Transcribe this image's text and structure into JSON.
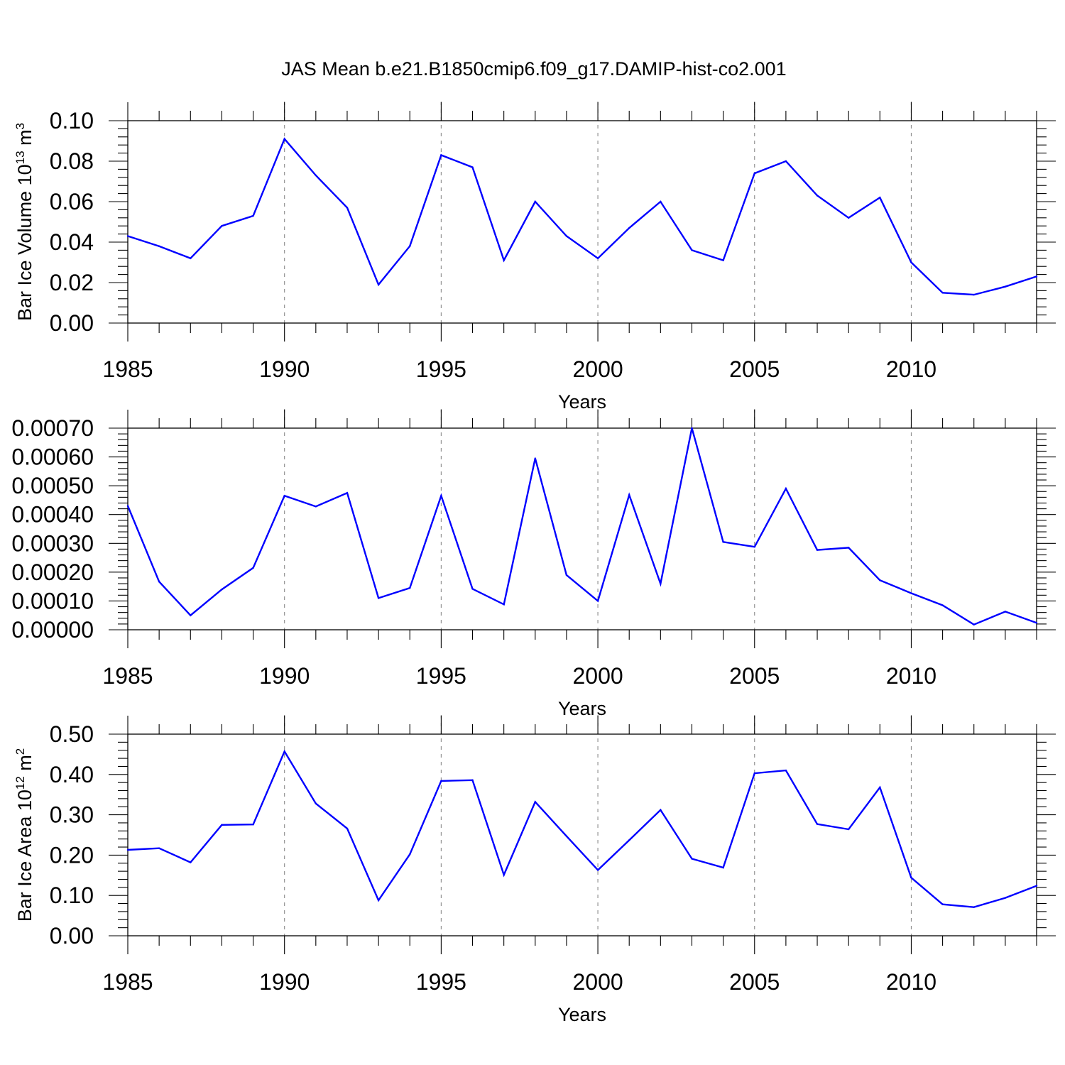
{
  "figure_title": "JAS Mean b.e21.B1850cmip6.f09_g17.DAMIP-hist-co2.001",
  "chart_data": [
    {
      "type": "line",
      "title": "",
      "xlabel": "Years",
      "ylabel": "Bar Ice Volume 10",
      "ylabel_exp": "13",
      "ylabel_unit": " m",
      "ylabel_unit_exp": "3",
      "xlim": [
        1985,
        2014
      ],
      "ylim": [
        0,
        0.1
      ],
      "yticks": [
        "0.00",
        "0.02",
        "0.04",
        "0.06",
        "0.08",
        "0.10"
      ],
      "xticks": [
        "1985",
        "1990",
        "1995",
        "2000",
        "2005",
        "2010"
      ],
      "line_color": "#0000ff",
      "x": [
        1985,
        1986,
        1987,
        1988,
        1989,
        1990,
        1991,
        1992,
        1993,
        1994,
        1995,
        1996,
        1997,
        1998,
        1999,
        2000,
        2001,
        2002,
        2003,
        2004,
        2005,
        2006,
        2007,
        2008,
        2009,
        2010,
        2011,
        2012,
        2013,
        2014
      ],
      "values": [
        0.043,
        0.038,
        0.032,
        0.048,
        0.053,
        0.091,
        0.073,
        0.057,
        0.019,
        0.038,
        0.083,
        0.077,
        0.031,
        0.06,
        0.043,
        0.032,
        0.047,
        0.06,
        0.036,
        0.031,
        0.074,
        0.08,
        0.063,
        0.052,
        0.062,
        0.03,
        0.015,
        0.014,
        0.018,
        0.023
      ]
    },
    {
      "type": "line",
      "title": "",
      "xlabel": "Years",
      "ylabel": "",
      "xlim": [
        1985,
        2014
      ],
      "ylim": [
        0,
        0.0007
      ],
      "yticks": [
        "0.00000",
        "0.00010",
        "0.00020",
        "0.00030",
        "0.00040",
        "0.00050",
        "0.00060",
        "0.00070"
      ],
      "xticks": [
        "1985",
        "1990",
        "1995",
        "2000",
        "2005",
        "2010"
      ],
      "line_color": "#0000ff",
      "x": [
        1985,
        1986,
        1987,
        1988,
        1989,
        1990,
        1991,
        1992,
        1993,
        1994,
        1995,
        1996,
        1997,
        1998,
        1999,
        2000,
        2001,
        2002,
        2003,
        2004,
        2005,
        2006,
        2007,
        2008,
        2009,
        2010,
        2011,
        2012,
        2013,
        2014
      ],
      "values": [
        0.00043,
        0.000167,
        5e-05,
        0.00014,
        0.000215,
        0.000465,
        0.000428,
        0.000475,
        0.00011,
        0.000145,
        0.000465,
        0.000142,
        8.8e-05,
        0.000595,
        0.00019,
        0.0001,
        0.000468,
        0.00016,
        0.0007,
        0.000305,
        0.000288,
        0.00049,
        0.000277,
        0.000285,
        0.000172,
        0.000127,
        8.5e-05,
        1.8e-05,
        6.3e-05,
        2.4e-05
      ]
    },
    {
      "type": "line",
      "title": "",
      "xlabel": "Years",
      "ylabel": "Bar Ice Area 10",
      "ylabel_exp": "12",
      "ylabel_unit": " m",
      "ylabel_unit_exp": "2",
      "xlim": [
        1985,
        2014
      ],
      "ylim": [
        0,
        0.5
      ],
      "yticks": [
        "0.00",
        "0.10",
        "0.20",
        "0.30",
        "0.40",
        "0.50"
      ],
      "xticks": [
        "1985",
        "1990",
        "1995",
        "2000",
        "2005",
        "2010"
      ],
      "line_color": "#0000ff",
      "x": [
        1985,
        1986,
        1987,
        1988,
        1989,
        1990,
        1991,
        1992,
        1993,
        1994,
        1995,
        1996,
        1997,
        1998,
        1999,
        2000,
        2001,
        2002,
        2003,
        2004,
        2005,
        2006,
        2007,
        2008,
        2009,
        2010,
        2011,
        2012,
        2013,
        2014
      ],
      "values": [
        0.213,
        0.217,
        0.182,
        0.275,
        0.276,
        0.457,
        0.328,
        0.266,
        0.088,
        0.202,
        0.384,
        0.386,
        0.151,
        0.332,
        0.247,
        0.163,
        0.237,
        0.312,
        0.191,
        0.169,
        0.403,
        0.41,
        0.277,
        0.264,
        0.368,
        0.144,
        0.078,
        0.071,
        0.094,
        0.124
      ]
    }
  ]
}
